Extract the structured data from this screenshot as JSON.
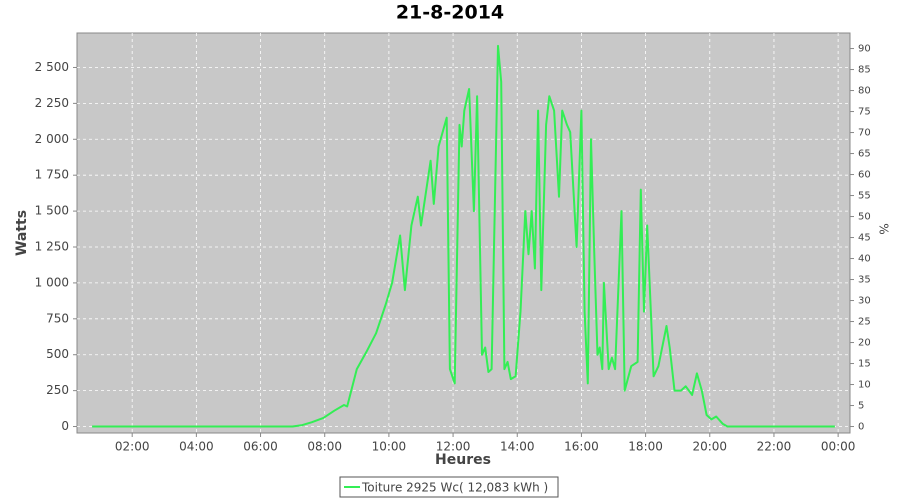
{
  "chart_data": {
    "type": "line",
    "title": "21-8-2014",
    "xlabel": "Heures",
    "ylabel": "Watts",
    "y2label": "%",
    "x": [
      0.75,
      3.0,
      5.0,
      7.0,
      7.3,
      7.6,
      7.96,
      8.3,
      8.6,
      8.7,
      9.0,
      9.3,
      9.6,
      9.9,
      10.1,
      10.35,
      10.5,
      10.7,
      10.9,
      11.0,
      11.3,
      11.4,
      11.55,
      11.8,
      11.9,
      12.05,
      12.2,
      12.27,
      12.35,
      12.5,
      12.65,
      12.75,
      12.9,
      13.0,
      13.1,
      13.2,
      13.4,
      13.5,
      13.6,
      13.7,
      13.8,
      13.95,
      14.1,
      14.25,
      14.35,
      14.45,
      14.55,
      14.65,
      14.75,
      14.9,
      15.0,
      15.15,
      15.3,
      15.4,
      15.55,
      15.65,
      15.85,
      16.0,
      16.1,
      16.2,
      16.3,
      16.4,
      16.5,
      16.57,
      16.65,
      16.7,
      16.85,
      16.95,
      17.05,
      17.25,
      17.35,
      17.55,
      17.75,
      17.85,
      17.95,
      18.05,
      18.25,
      18.4,
      18.65,
      18.75,
      18.9,
      19.1,
      19.25,
      19.45,
      19.6,
      19.75,
      19.9,
      20.05,
      20.2,
      20.4,
      20.55,
      22.0,
      23.9
    ],
    "series": [
      {
        "name": "Toiture 2925 Wc( 12,083 kWh )",
        "color": "#33ee55",
        "values": [
          0,
          0,
          0,
          0,
          10,
          30,
          60,
          110,
          150,
          140,
          400,
          520,
          650,
          850,
          1000,
          1330,
          950,
          1400,
          1600,
          1400,
          1850,
          1550,
          1950,
          2150,
          400,
          300,
          2100,
          1950,
          2200,
          2350,
          1500,
          2300,
          500,
          550,
          380,
          400,
          2650,
          2400,
          400,
          450,
          330,
          350,
          800,
          1500,
          1200,
          1500,
          1100,
          2200,
          950,
          2100,
          2300,
          2200,
          1600,
          2200,
          2100,
          2050,
          1250,
          2200,
          800,
          300,
          2000,
          1200,
          500,
          550,
          400,
          1000,
          400,
          480,
          400,
          1500,
          250,
          420,
          450,
          1650,
          800,
          1400,
          350,
          420,
          700,
          550,
          250,
          250,
          280,
          220,
          370,
          250,
          80,
          50,
          70,
          20,
          0,
          0,
          0
        ]
      }
    ],
    "xlim": [
      0.28,
      24.37
    ],
    "xticks": [
      {
        "value": 2,
        "label": "02:00"
      },
      {
        "value": 4,
        "label": "04:00"
      },
      {
        "value": 6,
        "label": "06:00"
      },
      {
        "value": 8,
        "label": "08:00"
      },
      {
        "value": 10,
        "label": "10:00"
      },
      {
        "value": 12,
        "label": "12:00"
      },
      {
        "value": 14,
        "label": "14:00"
      },
      {
        "value": 16,
        "label": "16:00"
      },
      {
        "value": 18,
        "label": "18:00"
      },
      {
        "value": 20,
        "label": "20:00"
      },
      {
        "value": 22,
        "label": "22:00"
      },
      {
        "value": 24,
        "label": "00:00"
      }
    ],
    "ylim": [
      -45,
      2740
    ],
    "yticks": [
      0,
      250,
      500,
      750,
      {
        "value": 1000,
        "label": "1 000"
      },
      {
        "value": 1250,
        "label": "1 250"
      },
      {
        "value": 1500,
        "label": "1 500"
      },
      {
        "value": 1750,
        "label": "1 750"
      },
      {
        "value": 2000,
        "label": "2 000"
      },
      {
        "value": 2250,
        "label": "2 250"
      },
      {
        "value": 2500,
        "label": "2 500"
      }
    ],
    "y2lim": [
      -1.54,
      93.7
    ],
    "y2ticks": [
      0,
      5,
      10,
      15,
      20,
      25,
      30,
      35,
      40,
      45,
      50,
      55,
      60,
      65,
      70,
      75,
      80,
      85,
      90
    ],
    "grid": true
  }
}
